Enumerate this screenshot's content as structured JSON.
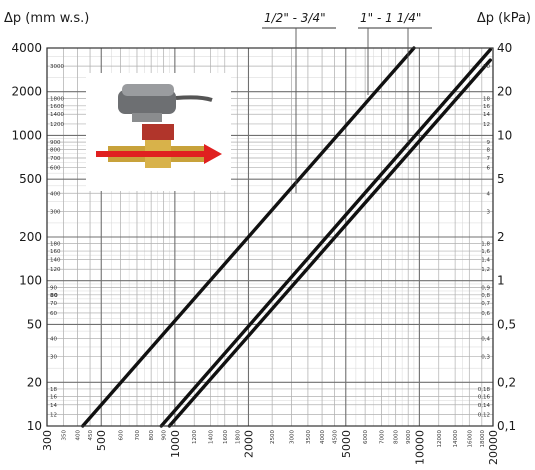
{
  "chart_data": {
    "type": "line",
    "title": "",
    "xscale": "log",
    "yscale": "log",
    "xlim": [
      300,
      20000
    ],
    "ylim": [
      10,
      4000
    ],
    "ylabel_left": "Δp (mm w.s.)",
    "ylabel_right": "Δp (kPa)",
    "left_major_ticks": [
      "4000",
      "2000",
      "1000",
      "500",
      "200",
      "100",
      "50",
      "20",
      "10"
    ],
    "left_minor_ticks": [
      "3000",
      "1800",
      "1600",
      "1400",
      "1200",
      "900",
      "800",
      "700",
      "600",
      "400",
      "300",
      "180",
      "160",
      "140",
      "120",
      "90",
      "80",
      "70",
      "60",
      "40",
      "30",
      "18",
      "16",
      "14",
      "12"
    ],
    "right_major_ticks": [
      "40",
      "20",
      "10",
      "5",
      "2",
      "1",
      "0,5",
      "0,2",
      "0,1"
    ],
    "right_minor_ticks": [
      "30",
      "18",
      "16",
      "14",
      "12",
      "9",
      "8",
      "7",
      "6",
      "4",
      "3",
      "1,8",
      "1,6",
      "1,4",
      "1,2",
      "0,9",
      "0,8",
      "0,7",
      "0,6",
      "0,4",
      "0,3",
      "0,18",
      "0,16",
      "0,14",
      "0,12"
    ],
    "x_major_ticks": [
      "300",
      "500",
      "1000",
      "2000",
      "5000",
      "10000",
      "20000"
    ],
    "x_minor_ticks": [
      "350",
      "400",
      "450",
      "600",
      "700",
      "800",
      "900",
      "1200",
      "1400",
      "1600",
      "1800",
      "2500",
      "3000",
      "3500",
      "4000",
      "4500",
      "6000",
      "7000",
      "8000",
      "9000",
      "12000",
      "14000",
      "16000",
      "18000"
    ],
    "series": [
      {
        "name": "1/2\" - 3/4\"",
        "x": [
          420,
          9500
        ],
        "y": [
          10,
          4000
        ]
      },
      {
        "name": "1\" - 1 1/4\"",
        "x": [
          880,
          19500
        ],
        "y": [
          10,
          3900
        ]
      },
      {
        "name": "",
        "x": [
          950,
          19500
        ],
        "y": [
          10,
          3300
        ]
      }
    ],
    "grid": true,
    "legend": "top"
  }
}
